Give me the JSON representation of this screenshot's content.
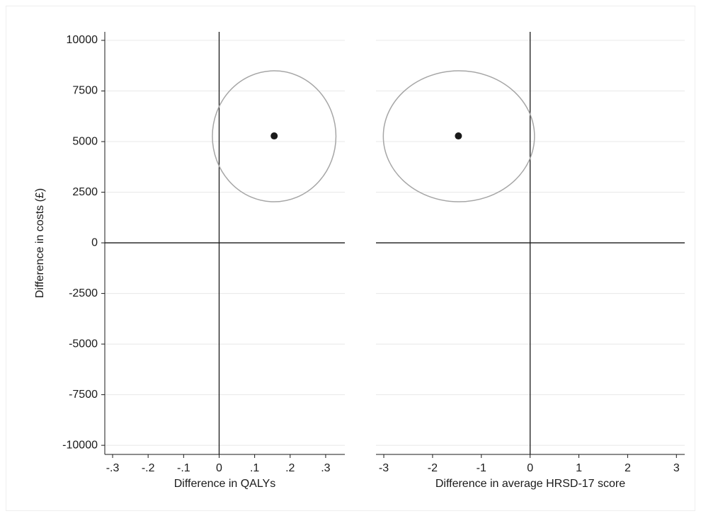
{
  "chart_data": [
    {
      "type": "scatter",
      "xlabel": "Difference in QALYs",
      "ylabel": "Difference in costs (£)",
      "xlim": [
        -0.322,
        0.354
      ],
      "ylim": [
        -10450,
        10420
      ],
      "xticks": [
        {
          "value": -0.3,
          "label": "-.3"
        },
        {
          "value": -0.2,
          "label": "-.2"
        },
        {
          "value": -0.1,
          "label": "-.1"
        },
        0,
        {
          "value": 0.1,
          "label": ".1"
        },
        {
          "value": 0.2,
          "label": ".2"
        },
        {
          "value": 0.3,
          "label": ".3"
        }
      ],
      "yticks": [
        10000,
        7500,
        5000,
        2500,
        0,
        -2500,
        -5000,
        -7500,
        -10000
      ],
      "show_yaxis": true,
      "grid": true,
      "xref": 0,
      "yref": 0,
      "series": [
        {
          "color": "#1a1a1a",
          "x": [
            0.155
          ],
          "values": [
            5280
          ]
        }
      ],
      "ellipse": {
        "cx": 0.155,
        "cy": 5262,
        "rx": 0.174,
        "ry": 3234,
        "color": "#a6a6a6"
      }
    },
    {
      "type": "scatter",
      "xlabel": "Difference in average HRSD-17 score",
      "xlim": [
        -3.16,
        3.17
      ],
      "ylim": [
        -10450,
        10420
      ],
      "xticks": [
        -3,
        -2,
        -1,
        0,
        1,
        2,
        3
      ],
      "yticks": [
        10000,
        7500,
        5000,
        2500,
        0,
        -2500,
        -5000,
        -7500,
        -10000
      ],
      "show_yaxis": false,
      "grid": true,
      "xref": 0,
      "yref": 0,
      "series": [
        {
          "color": "#1a1a1a",
          "x": [
            -1.47
          ],
          "values": [
            5280
          ]
        }
      ],
      "ellipse": {
        "cx": -1.46,
        "cy": 5262,
        "rx": 1.55,
        "ry": 3234,
        "color": "#a6a6a6"
      }
    }
  ]
}
